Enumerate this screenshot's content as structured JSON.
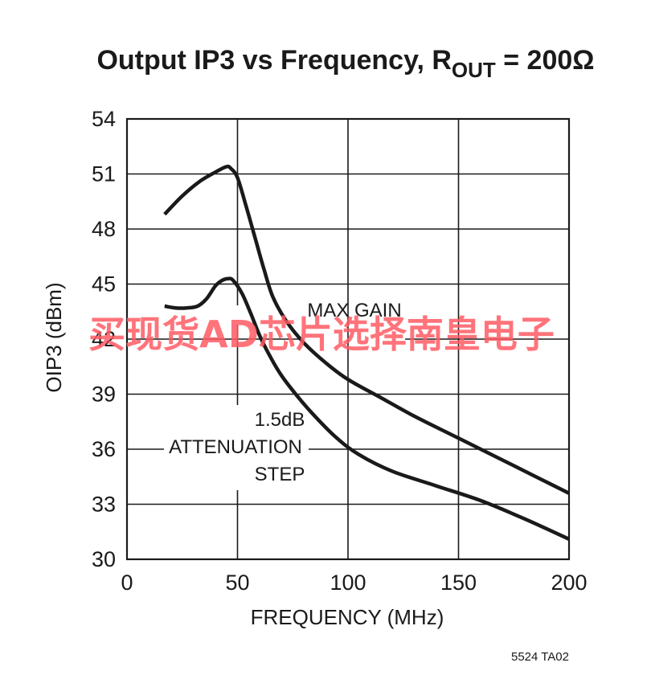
{
  "chart_data": {
    "type": "line",
    "title": "Output IP3 vs Frequency, R",
    "title_subscript": "OUT",
    "title_suffix": " = 200Ω",
    "xlabel": "FREQUENCY (MHz)",
    "ylabel": "OIP3 (dBm)",
    "xlim": [
      0,
      200
    ],
    "ylim": [
      30,
      54
    ],
    "xticks": [
      0,
      50,
      100,
      150,
      200
    ],
    "yticks": [
      30,
      33,
      36,
      39,
      42,
      45,
      48,
      51,
      54
    ],
    "grid": true,
    "series": [
      {
        "name": "MAX GAIN",
        "x": [
          17,
          25,
          33,
          40,
          45,
          47,
          50,
          54,
          58,
          62,
          66,
          72,
          80,
          90,
          100,
          115,
          130,
          150,
          175,
          200
        ],
        "y": [
          48.8,
          49.8,
          50.6,
          51.1,
          51.4,
          51.3,
          50.8,
          49.2,
          47.5,
          45.8,
          44.3,
          43.0,
          41.8,
          40.7,
          39.8,
          38.8,
          37.8,
          36.6,
          35.1,
          33.6
        ]
      },
      {
        "name": "1.5dB ATTENUATION STEP",
        "x": [
          17,
          22,
          27,
          32,
          36,
          40,
          43,
          46,
          48,
          52,
          56,
          60,
          65,
          70,
          77,
          85,
          95,
          105,
          120,
          140,
          160,
          180,
          200
        ],
        "y": [
          43.8,
          43.7,
          43.7,
          43.8,
          44.2,
          44.9,
          45.2,
          45.3,
          45.2,
          44.5,
          43.4,
          42.2,
          41.0,
          40.0,
          38.9,
          37.8,
          36.6,
          35.7,
          34.8,
          34.0,
          33.2,
          32.2,
          31.1
        ]
      }
    ],
    "annotations": [
      {
        "text": "MAX GAIN"
      },
      {
        "lines": [
          "1.5dB",
          "ATTENUATION",
          "STEP"
        ]
      }
    ]
  },
  "watermark": "买现货AD芯片选择南皇电子",
  "figure_code": "5524 TA02",
  "colors": {
    "ink": "#1a1a1a",
    "watermark": "#ff5a64"
  }
}
